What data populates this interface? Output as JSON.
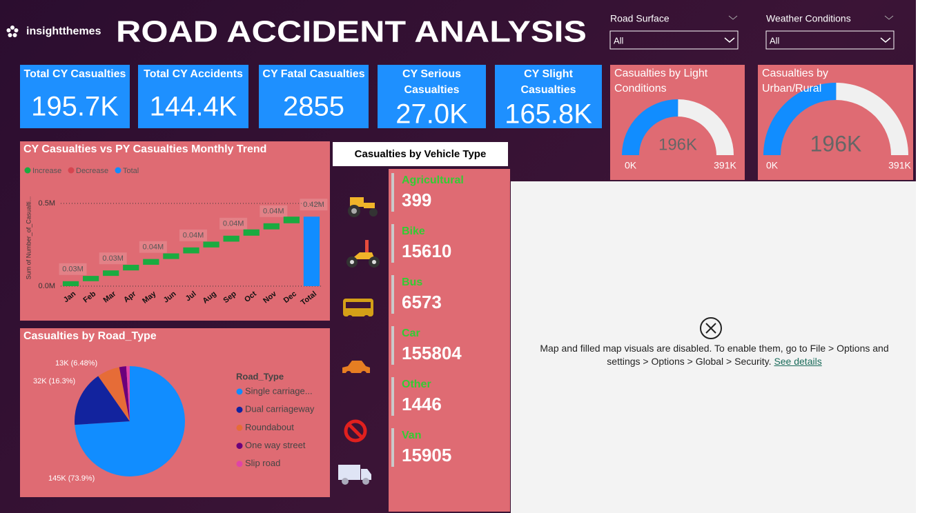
{
  "header": {
    "brand": "insightthemes",
    "title": "ROAD ACCIDENT ANALYSIS"
  },
  "filters": [
    {
      "label": "Road Surface",
      "value": "All"
    },
    {
      "label": "Weather Conditions",
      "value": "All"
    }
  ],
  "kpis": [
    {
      "label": "Total CY Casualties",
      "value": "195.7K"
    },
    {
      "label": "Total CY Accidents",
      "value": "144.4K"
    },
    {
      "label": "CY Fatal Casualties",
      "value": "2855"
    },
    {
      "label": "CY Serious Casualties",
      "value": "27.0K"
    },
    {
      "label": "CY Slight Casualties",
      "value": "165.8K"
    }
  ],
  "chart_data": [
    {
      "type": "waterfall",
      "title": "CY Casualties vs PY Casualties Monthly Trend",
      "y_label": "Sum of Number_of_Casualti...",
      "legend": [
        {
          "name": "Increase",
          "color": "#1aab40"
        },
        {
          "name": "Decrease",
          "color": "#d64550"
        },
        {
          "name": "Total",
          "color": "#118dff"
        }
      ],
      "categories": [
        "Jan",
        "Feb",
        "Mar",
        "Apr",
        "May",
        "Jun",
        "Jul",
        "Aug",
        "Sep",
        "Oct",
        "Nov",
        "Dec",
        "Total"
      ],
      "values": [
        0.03,
        0.032,
        0.033,
        0.034,
        0.035,
        0.034,
        0.036,
        0.035,
        0.036,
        0.038,
        0.037,
        0.04,
        0.42
      ],
      "value_labels": [
        "0.03M",
        null,
        "0.03M",
        null,
        "0.04M",
        null,
        "0.04M",
        null,
        "0.04M",
        null,
        "0.04M",
        null,
        "0.42M"
      ],
      "ylim": [
        0,
        0.6
      ],
      "yticks": [
        {
          "value": 0,
          "label": "0.0M"
        },
        {
          "value": 0.5,
          "label": "0.5M"
        }
      ],
      "grid": true
    },
    {
      "type": "pie",
      "title": "Casualties by Road_Type",
      "legend_title": "Road_Type",
      "categories": [
        "Single carriage...",
        "Dual carriageway",
        "Roundabout",
        "One way street",
        "Slip road"
      ],
      "values": [
        145,
        32,
        13,
        4,
        2
      ],
      "value_labels": [
        "145K (73.9%)",
        "32K (16.3%)",
        "13K (6.48%)",
        null,
        null
      ],
      "colors": [
        "#118dff",
        "#12239e",
        "#e66c37",
        "#6b007b",
        "#e044a7"
      ]
    },
    {
      "type": "gauge",
      "title": "Casualties by Light Conditions",
      "values": [
        196000
      ],
      "value_labels": [
        "196K"
      ],
      "ylim": [
        0,
        391000
      ],
      "yticks": [
        {
          "value": 0,
          "label": "0K"
        },
        {
          "value": 391000,
          "label": "391K"
        }
      ],
      "color": "#118dff"
    },
    {
      "type": "gauge",
      "title": "Casualties by Urban/Rural",
      "values": [
        196000
      ],
      "value_labels": [
        "196K"
      ],
      "ylim": [
        0,
        391000
      ],
      "yticks": [
        {
          "value": 0,
          "label": "0K"
        },
        {
          "value": 391000,
          "label": "391K"
        }
      ],
      "color": "#118dff"
    }
  ],
  "vehicles": {
    "title": "Casualties by Vehicle Type",
    "items": [
      {
        "name": "Agricultural",
        "value": "399"
      },
      {
        "name": "Bike",
        "value": "15610"
      },
      {
        "name": "Bus",
        "value": "6573"
      },
      {
        "name": "Car",
        "value": "155804"
      },
      {
        "name": "Other",
        "value": "1446"
      },
      {
        "name": "Van",
        "value": "15905"
      }
    ]
  },
  "map_notice": {
    "text": "Map and filled map visuals are disabled. To enable them, go to File > Options and settings > Options > Global > Security.",
    "link": "See details"
  }
}
